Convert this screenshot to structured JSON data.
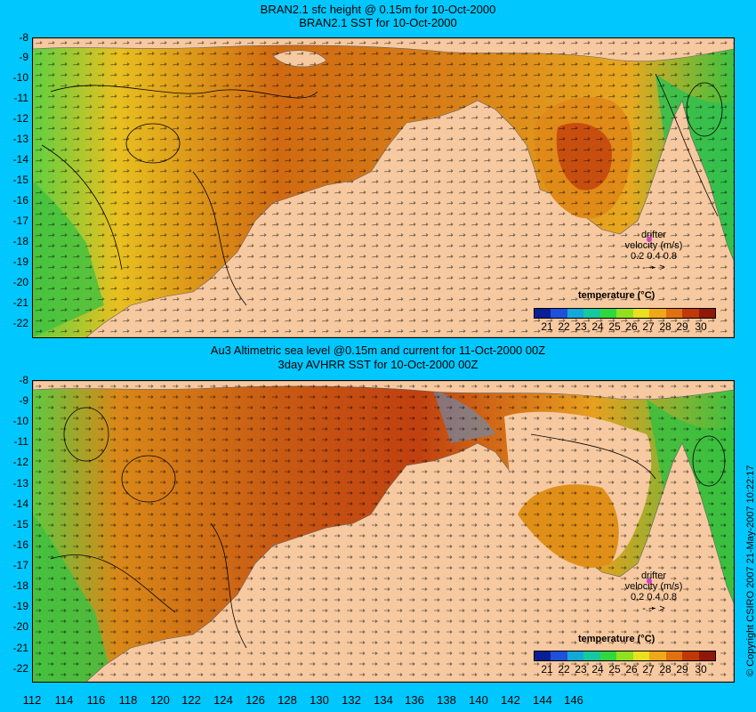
{
  "top": {
    "title_line1": "BRAN2.1 sfc height @ 0.15m for 10-Oct-2000",
    "title_line2": "BRAN2.1 SST for 10-Oct-2000"
  },
  "bottom": {
    "title_line1": "Au3 Altimetric sea level  @0.15m and current for 11-Oct-2000 00Z",
    "title_line2": "3day AVHRR SST for 10-Oct-2000 00Z"
  },
  "y_ticks": [
    "-8",
    "-9",
    "-10",
    "-11",
    "-12",
    "-13",
    "-14",
    "-15",
    "-16",
    "-17",
    "-18",
    "-19",
    "-20",
    "-21",
    "-22"
  ],
  "x_ticks": [
    "112",
    "114",
    "116",
    "118",
    "120",
    "122",
    "124",
    "126",
    "128",
    "130",
    "132",
    "134",
    "136",
    "138",
    "140",
    "142",
    "144",
    "146"
  ],
  "legend": {
    "line1": "drifter",
    "line2": "velocity (m/s)",
    "scale": "0.2 0.4 0.8",
    "marks": "-    ➛    >"
  },
  "colorbar": {
    "title": "temperature (°C)",
    "ticks": [
      "21",
      "22",
      "23",
      "24",
      "25",
      "26",
      "27",
      "28",
      "29",
      "30"
    ],
    "colors": [
      "#0a1e96",
      "#1e50dc",
      "#12a8d8",
      "#14c8a0",
      "#30d840",
      "#90e020",
      "#e8e020",
      "#f0a818",
      "#e07010",
      "#c03808",
      "#901808"
    ]
  },
  "copyright": "© Copyright CSIRO 2007  21-May-2007 10:22:17",
  "colors": {
    "land": "#f7c9a0",
    "background": "#00c8ff",
    "warm": "#d06010",
    "mid": "#e89a18",
    "cool": "#40c840"
  }
}
